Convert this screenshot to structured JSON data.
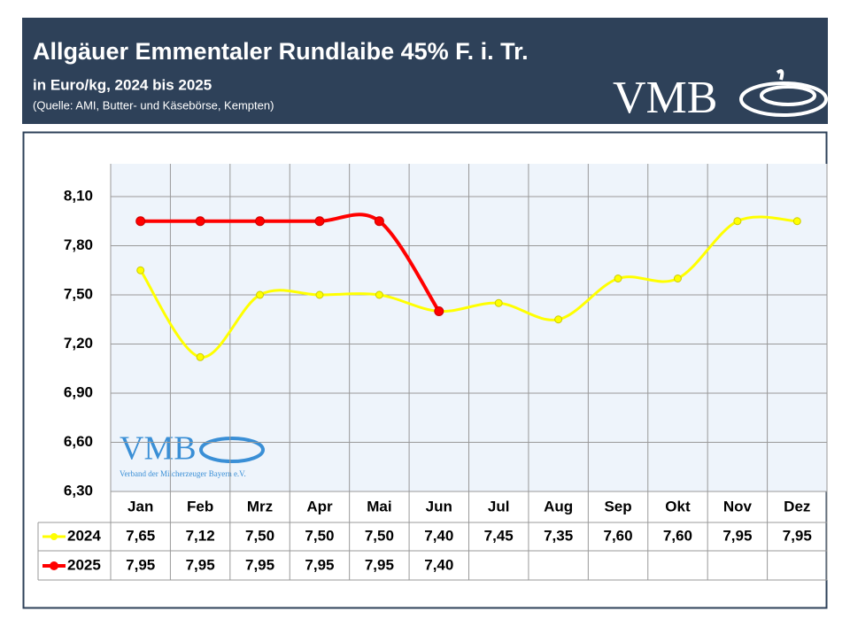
{
  "header": {
    "title": "Allgäuer Emmentaler Rundlaibe 45% F. i. Tr.",
    "subtitle": "in Euro/kg, 2024 bis 2025",
    "source": "(Quelle: AMI, Butter- und Käsebörse, Kempten)",
    "logo": "VMB"
  },
  "watermark": {
    "logo": "VMB",
    "caption": "Verband der Milcherzeuger Bayern e.V."
  },
  "chart_data": {
    "type": "line",
    "categories": [
      "Jan",
      "Feb",
      "Mrz",
      "Apr",
      "Mai",
      "Jun",
      "Jul",
      "Aug",
      "Sep",
      "Okt",
      "Nov",
      "Dez"
    ],
    "series": [
      {
        "name": "2024",
        "color": "#ffff00",
        "values": [
          7.65,
          7.12,
          7.5,
          7.5,
          7.5,
          7.4,
          7.45,
          7.35,
          7.6,
          7.6,
          7.95,
          7.95
        ],
        "value_labels": [
          "7,65",
          "7,12",
          "7,50",
          "7,50",
          "7,50",
          "7,40",
          "7,45",
          "7,35",
          "7,60",
          "7,60",
          "7,95",
          "7,95"
        ]
      },
      {
        "name": "2025",
        "color": "#ff0000",
        "values": [
          7.95,
          7.95,
          7.95,
          7.95,
          7.95,
          7.4,
          null,
          null,
          null,
          null,
          null,
          null
        ],
        "value_labels": [
          "7,95",
          "7,95",
          "7,95",
          "7,95",
          "7,95",
          "7,40",
          null,
          null,
          null,
          null,
          null,
          null
        ]
      }
    ],
    "ylim": [
      6.3,
      8.3
    ],
    "yticks": [
      {
        "value": 6.3,
        "label": "6,30"
      },
      {
        "value": 6.6,
        "label": "6,60"
      },
      {
        "value": 6.9,
        "label": "6,90"
      },
      {
        "value": 7.2,
        "label": "7,20"
      },
      {
        "value": 7.5,
        "label": "7,50"
      },
      {
        "value": 7.8,
        "label": "7,80"
      },
      {
        "value": 8.1,
        "label": "8,10"
      }
    ],
    "grid": true
  }
}
